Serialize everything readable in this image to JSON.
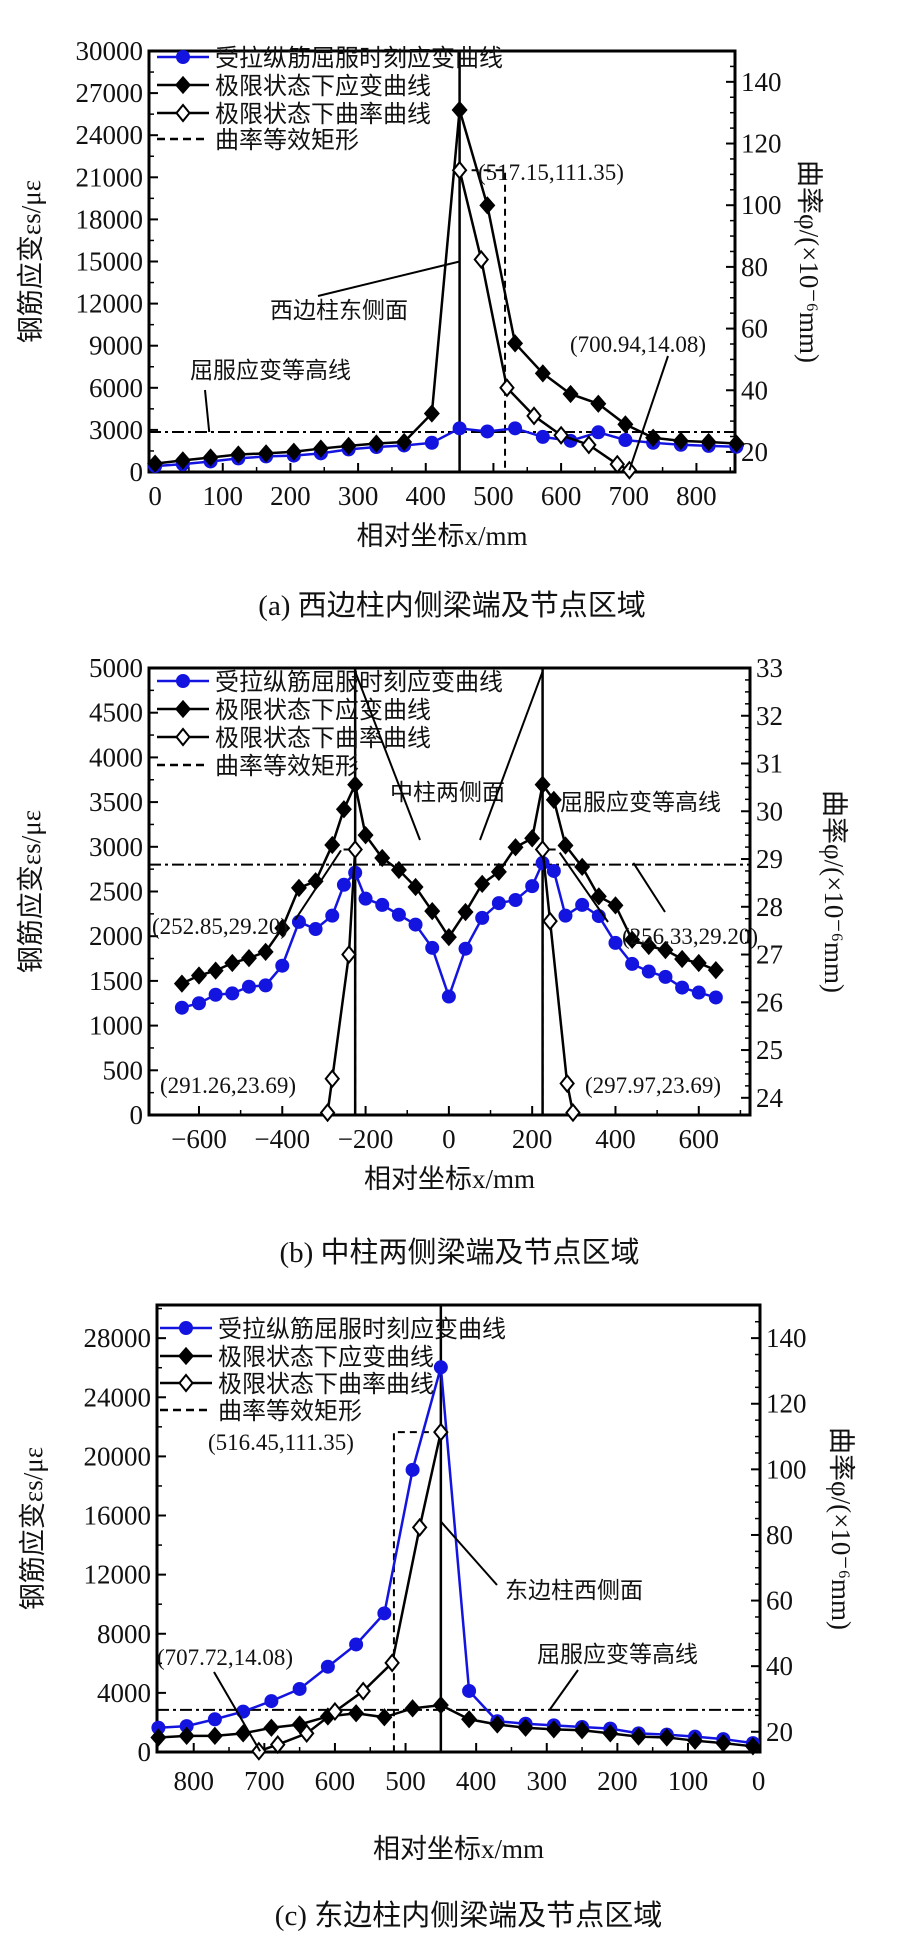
{
  "chart_data": [
    {
      "type": "line",
      "caption": "(a)  西边柱内侧梁端及节点区域",
      "xlabel": "相对坐标x/mm",
      "ylabel": "钢筋应变εs/με",
      "ylabel_right": "曲率φ/(×10⁻⁶mm)",
      "xlim": [
        -9,
        857
      ],
      "ylim": [
        0,
        30000
      ],
      "ylim_right": [
        13.5,
        150
      ],
      "x_ticks": [
        "0",
        "100",
        "200",
        "300",
        "400",
        "500",
        "600",
        "700",
        "800"
      ],
      "x_tick_values": [
        0,
        100,
        200,
        300,
        400,
        500,
        600,
        700,
        800
      ],
      "y_ticks": [
        "0",
        "3000",
        "6000",
        "9000",
        "12000",
        "15000",
        "18000",
        "21000",
        "24000",
        "27000",
        "30000"
      ],
      "y_tick_values": [
        0,
        3000,
        6000,
        9000,
        12000,
        15000,
        18000,
        21000,
        24000,
        27000,
        30000
      ],
      "y_right_ticks": [
        "20",
        "40",
        "60",
        "80",
        "100",
        "120",
        "140"
      ],
      "y_right_tick_values": [
        20,
        40,
        60,
        80,
        100,
        120,
        140
      ],
      "legend": [
        "受拉纵筋屈服时刻应变曲线",
        "极限状态下应变曲线",
        "极限状态下曲率曲线",
        "曲率等效矩形"
      ],
      "series": [
        {
          "name": "受拉纵筋屈服时刻应变曲线",
          "axis": "left",
          "color": "#1414e0",
          "marker": "circle",
          "x": [
            0,
            41,
            82,
            123,
            164,
            205,
            245,
            286,
            327,
            368,
            409,
            450,
            491,
            532,
            573,
            614,
            655,
            695,
            736,
            777,
            818,
            859
          ],
          "y": [
            420,
            560,
            750,
            970,
            1110,
            1170,
            1330,
            1610,
            1780,
            1890,
            2080,
            3110,
            2890,
            3110,
            2500,
            2220,
            2830,
            2280,
            2080,
            1940,
            1860,
            1800
          ]
        },
        {
          "name": "极限状态下应变曲线",
          "axis": "left",
          "color": "#000000",
          "marker": "diamond-filled",
          "x": [
            0,
            41,
            82,
            123,
            164,
            205,
            245,
            286,
            327,
            368,
            409,
            450,
            491,
            532,
            573,
            614,
            655,
            695,
            736,
            777,
            818,
            859
          ],
          "y": [
            600,
            830,
            1030,
            1250,
            1330,
            1440,
            1670,
            1860,
            2030,
            2140,
            4170,
            25800,
            19000,
            9170,
            7030,
            5560,
            4860,
            3390,
            2440,
            2220,
            2140,
            2030
          ]
        },
        {
          "name": "极限状态下曲率曲线",
          "axis": "right",
          "color": "#000000",
          "marker": "diamond-open",
          "x": [
            450,
            482,
            520,
            560,
            600,
            641,
            683,
            700.94
          ],
          "y": [
            111.35,
            82.4,
            40.8,
            31.7,
            25.4,
            22.3,
            16,
            14.08
          ]
        }
      ],
      "yield_line": 2850,
      "column_faces": [
        450
      ],
      "equiv_rect": [
        {
          "x0": 450,
          "x1": 517.15,
          "phi": 111.35
        }
      ],
      "annotations": [
        {
          "text": "(517.15,111.35)"
        },
        {
          "text": "西边柱东侧面"
        },
        {
          "text": "屈服应变等高线"
        },
        {
          "text": "(700.94,14.08)"
        }
      ]
    },
    {
      "type": "line",
      "caption": "(b)  中柱两侧梁端及节点区域",
      "xlabel": "相对坐标x/mm",
      "ylabel": "钢筋应变εs/με",
      "ylabel_right": "曲率φ/(×10⁻⁶mm)",
      "xlim": [
        -720,
        723
      ],
      "ylim": [
        0,
        5000
      ],
      "ylim_right": [
        23.64,
        33
      ],
      "x_ticks": [
        "−600",
        "−400",
        "−200",
        "0",
        "200",
        "400",
        "600"
      ],
      "x_tick_values": [
        -600,
        -400,
        -200,
        0,
        200,
        400,
        600
      ],
      "y_ticks": [
        "0",
        "500",
        "1000",
        "1500",
        "2000",
        "2500",
        "3000",
        "3500",
        "4000",
        "4500",
        "5000"
      ],
      "y_tick_values": [
        0,
        500,
        1000,
        1500,
        2000,
        2500,
        3000,
        3500,
        4000,
        4500,
        5000
      ],
      "y_right_ticks": [
        "24",
        "25",
        "26",
        "27",
        "28",
        "29",
        "30",
        "31",
        "32",
        "33"
      ],
      "y_right_tick_values": [
        24,
        25,
        26,
        27,
        28,
        29,
        30,
        31,
        32,
        33
      ],
      "legend": [
        "受拉纵筋屈服时刻应变曲线",
        "极限状态下应变曲线",
        "极限状态下曲率曲线",
        "曲率等效矩形"
      ],
      "series": [
        {
          "name": "受拉纵筋屈服时刻应变曲线",
          "axis": "left",
          "color": "#1414e0",
          "marker": "circle",
          "x": [
            -641,
            -600,
            -560,
            -520,
            -480,
            -440,
            -400,
            -360,
            -320,
            -280,
            -252,
            -225,
            -200,
            -160,
            -120,
            -80,
            -40,
            0,
            40,
            80,
            120,
            160,
            200,
            225,
            252,
            280,
            320,
            360,
            400,
            440,
            480,
            520,
            560,
            600,
            641
          ],
          "y": [
            1200,
            1250,
            1345,
            1360,
            1435,
            1450,
            1670,
            2160,
            2080,
            2230,
            2575,
            2710,
            2420,
            2350,
            2240,
            2130,
            1870,
            1325,
            1860,
            2205,
            2370,
            2405,
            2560,
            2820,
            2730,
            2230,
            2350,
            2225,
            1925,
            1690,
            1605,
            1545,
            1425,
            1370,
            1315
          ]
        },
        {
          "name": "极限状态下应变曲线",
          "axis": "left",
          "color": "#000000",
          "marker": "diamond-filled",
          "x": [
            -641,
            -600,
            -560,
            -520,
            -480,
            -440,
            -400,
            -360,
            -320,
            -280,
            -252,
            -225,
            -200,
            -160,
            -120,
            -80,
            -40,
            0,
            40,
            80,
            120,
            160,
            200,
            225,
            252,
            280,
            320,
            360,
            400,
            440,
            480,
            520,
            560,
            600,
            641
          ],
          "y": [
            1470,
            1560,
            1615,
            1700,
            1755,
            1825,
            2090,
            2540,
            2615,
            3020,
            3420,
            3695,
            3130,
            2875,
            2740,
            2550,
            2280,
            1990,
            2270,
            2585,
            2720,
            2995,
            3095,
            3695,
            3525,
            3015,
            2775,
            2445,
            2345,
            1960,
            1890,
            1845,
            1745,
            1700,
            1620
          ]
        },
        {
          "name": "极限状态下曲率曲线 (左)",
          "axis": "right",
          "color": "#000000",
          "marker": "diamond-open",
          "x": [
            -291.26,
            -280,
            -240,
            -225
          ],
          "y": [
            23.69,
            24.4,
            27.0,
            29.2
          ]
        },
        {
          "name": "极限状态下曲率曲线 (右)",
          "axis": "right",
          "color": "#000000",
          "marker": "diamond-open",
          "x": [
            225,
            243,
            284,
            297.97
          ],
          "y": [
            29.2,
            27.7,
            24.3,
            23.69
          ]
        }
      ],
      "yield_line": 2800,
      "column_faces": [
        -225,
        225
      ],
      "equiv_rect": [
        {
          "x0": -252.85,
          "x1": -225,
          "phi": 29.2
        },
        {
          "x0": 256.33,
          "x1": 225,
          "phi": 29.2
        }
      ],
      "annotations": [
        {
          "text": "中柱两侧面"
        },
        {
          "text": "屈服应变等高线"
        },
        {
          "text": "(252.85,29.20)"
        },
        {
          "text": "(256.33,29.20)"
        },
        {
          "text": "(291.26,23.69)"
        },
        {
          "text": "(297.97,23.69)"
        }
      ]
    },
    {
      "type": "line",
      "caption": "(c)  东边柱内侧梁端及节点区域",
      "xlabel": "相对坐标x/mm",
      "ylabel": "钢筋应变εs/με",
      "ylabel_right": "曲率φ/(×10⁻⁶mm)",
      "xlim": [
        852,
        -2
      ],
      "ylim": [
        0,
        30243
      ],
      "ylim_right": [
        13.84,
        150.1
      ],
      "x_ticks": [
        "800",
        "700",
        "600",
        "500",
        "400",
        "300",
        "200",
        "100",
        "0"
      ],
      "x_tick_values": [
        800,
        700,
        600,
        500,
        400,
        300,
        200,
        100,
        0
      ],
      "y_ticks": [
        "0",
        "4000",
        "8000",
        "12000",
        "16000",
        "20000",
        "24000",
        "28000"
      ],
      "y_tick_values": [
        0,
        4000,
        8000,
        12000,
        16000,
        20000,
        24000,
        28000
      ],
      "y_right_ticks": [
        "20",
        "40",
        "60",
        "80",
        "100",
        "120",
        "140"
      ],
      "y_right_tick_values": [
        20,
        40,
        60,
        80,
        100,
        120,
        140
      ],
      "legend": [
        "受拉纵筋屈服时刻应变曲线",
        "极限状态下应变曲线",
        "极限状态下曲率曲线",
        "曲率等效矩形"
      ],
      "series": [
        {
          "name": "受拉纵筋屈服时刻应变曲线",
          "axis": "left",
          "color": "#1414e0",
          "marker": "circle",
          "x": [
            850,
            810,
            770,
            730,
            690,
            650,
            610,
            570,
            530,
            490,
            450,
            410,
            370,
            330,
            290,
            250,
            210,
            170,
            130,
            90,
            50,
            8
          ],
          "y": [
            1640,
            1750,
            2215,
            2735,
            3445,
            4265,
            5770,
            7275,
            9380,
            19090,
            26030,
            4130,
            2080,
            1915,
            1805,
            1695,
            1585,
            1260,
            1175,
            1040,
            875,
            600
          ]
        },
        {
          "name": "极限状态下应变曲线",
          "axis": "left",
          "color": "#000000",
          "marker": "diamond-filled",
          "x": [
            850,
            810,
            770,
            730,
            690,
            650,
            610,
            570,
            530,
            490,
            450,
            410,
            370,
            330,
            290,
            250,
            210,
            170,
            130,
            90,
            50,
            8
          ],
          "y": [
            985,
            1095,
            1095,
            1260,
            1640,
            1860,
            2405,
            2625,
            2350,
            2955,
            3170,
            2215,
            1860,
            1640,
            1530,
            1475,
            1260,
            1040,
            985,
            765,
            600,
            385
          ]
        },
        {
          "name": "极限状态下曲率曲线",
          "axis": "right",
          "color": "#000000",
          "marker": "diamond-open",
          "x": [
            707.72,
            681,
            640,
            600,
            560,
            519,
            480,
            450
          ],
          "y": [
            14.08,
            16.1,
            19.5,
            26.2,
            32.4,
            41.0,
            82.3,
            111.35
          ]
        }
      ],
      "yield_line": 2850,
      "column_faces": [
        450
      ],
      "equiv_rect": [
        {
          "x0": 450,
          "x1": 516.45,
          "phi": 111.35
        }
      ],
      "annotations": [
        {
          "text": "(516.45,111.35)"
        },
        {
          "text": "东边柱西侧面"
        },
        {
          "text": "(707.72,14.08)"
        },
        {
          "text": "屈服应变等高线"
        }
      ]
    }
  ]
}
